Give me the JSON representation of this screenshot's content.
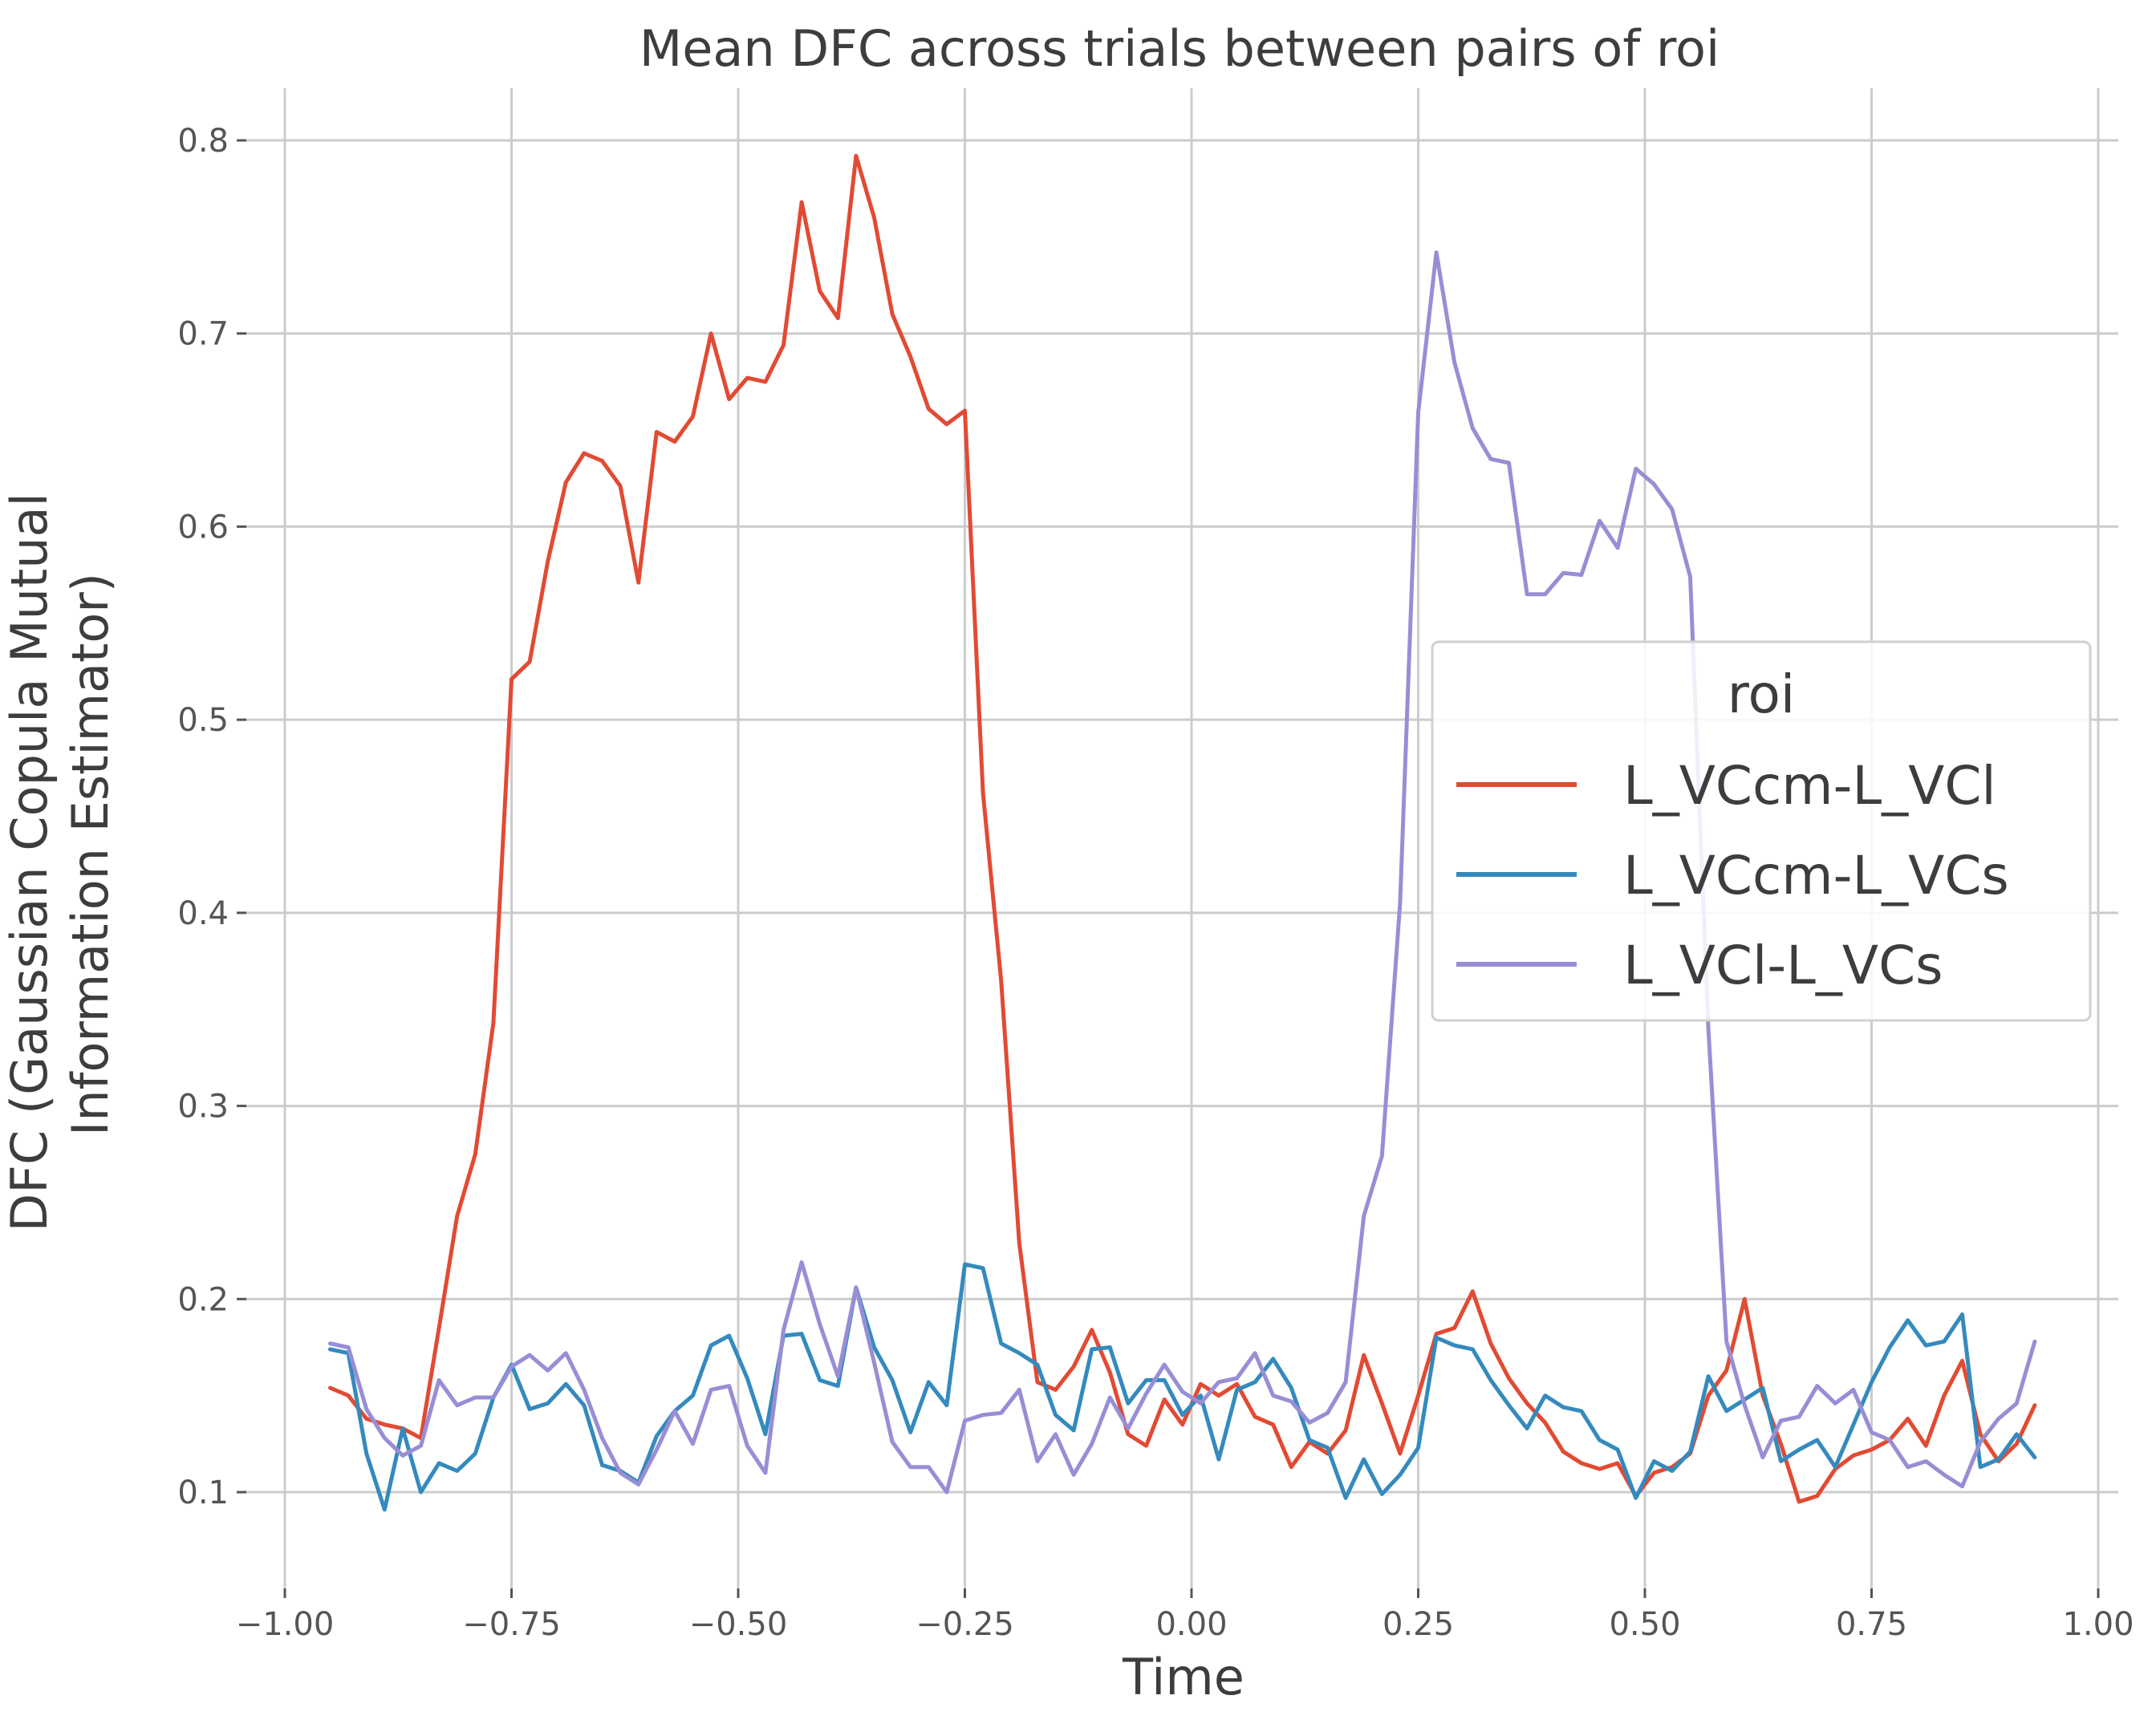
{
  "chart_data": {
    "type": "line",
    "title": "Mean DFC across trials between pairs of roi",
    "xlabel": "Time",
    "ylabel": [
      "DFC (Gaussian Copula Mutual",
      "Information Estimator)"
    ],
    "xlim": [
      -1.0,
      1.0
    ],
    "ylim": [
      0.073,
      0.827
    ],
    "xticks": [
      -1.0,
      -0.75,
      -0.5,
      -0.25,
      0.0,
      0.25,
      0.5,
      0.75,
      1.0
    ],
    "xtick_labels": [
      "−1.00",
      "−0.75",
      "−0.50",
      "−0.25",
      "0.00",
      "0.25",
      "0.50",
      "0.75",
      "1.00"
    ],
    "yticks": [
      0.1,
      0.2,
      0.3,
      0.4,
      0.5,
      0.6,
      0.7,
      0.8
    ],
    "ytick_labels": [
      "0.1",
      "0.2",
      "0.3",
      "0.4",
      "0.5",
      "0.6",
      "0.7",
      "0.8"
    ],
    "grid": true,
    "legend": {
      "title": "roi",
      "placement": "center-right"
    },
    "x": [
      -0.95,
      -0.93,
      -0.91,
      -0.89,
      -0.87,
      -0.85,
      -0.83,
      -0.81,
      -0.79,
      -0.77,
      -0.75,
      -0.73,
      -0.71,
      -0.69,
      -0.67,
      -0.65,
      -0.63,
      -0.61,
      -0.59,
      -0.57,
      -0.55,
      -0.53,
      -0.51,
      -0.49,
      -0.47,
      -0.45,
      -0.43,
      -0.41,
      -0.39,
      -0.37,
      -0.35,
      -0.33,
      -0.31,
      -0.29,
      -0.27,
      -0.25,
      -0.23,
      -0.21,
      -0.19,
      -0.17,
      -0.15,
      -0.13,
      -0.11,
      -0.09,
      -0.07,
      -0.05,
      -0.03,
      -0.01,
      0.01,
      0.03,
      0.05,
      0.07,
      0.09,
      0.11,
      0.13,
      0.15,
      0.17,
      0.19,
      0.21,
      0.23,
      0.25,
      0.27,
      0.29,
      0.31,
      0.33,
      0.35,
      0.37,
      0.39,
      0.41,
      0.43,
      0.45,
      0.47,
      0.49,
      0.51,
      0.53,
      0.55,
      0.57,
      0.59,
      0.61,
      0.63,
      0.65,
      0.67,
      0.69,
      0.71,
      0.73,
      0.75,
      0.77,
      0.79,
      0.81,
      0.83,
      0.85,
      0.87,
      0.89,
      0.91,
      0.93
    ],
    "series": [
      {
        "name": "L_VCcm-L_VCl",
        "color": "#E24A33",
        "values": [
          0.154,
          0.15,
          0.138,
          0.135,
          0.133,
          0.128,
          0.185,
          0.243,
          0.275,
          0.343,
          0.521,
          0.53,
          0.582,
          0.623,
          0.638,
          0.634,
          0.621,
          0.571,
          0.649,
          0.644,
          0.657,
          0.7,
          0.666,
          0.677,
          0.675,
          0.694,
          0.768,
          0.722,
          0.708,
          0.792,
          0.76,
          0.71,
          0.688,
          0.661,
          0.653,
          0.66,
          0.462,
          0.365,
          0.229,
          0.157,
          0.153,
          0.165,
          0.184,
          0.162,
          0.13,
          0.124,
          0.148,
          0.135,
          0.156,
          0.15,
          0.156,
          0.139,
          0.135,
          0.113,
          0.126,
          0.12,
          0.132,
          0.171,
          0.146,
          0.12,
          0.15,
          0.182,
          0.185,
          0.204,
          0.177,
          0.159,
          0.146,
          0.136,
          0.121,
          0.115,
          0.112,
          0.115,
          0.098,
          0.11,
          0.113,
          0.12,
          0.15,
          0.163,
          0.2,
          0.15,
          0.125,
          0.095,
          0.098,
          0.112,
          0.119,
          0.122,
          0.127,
          0.138,
          0.124,
          0.15,
          0.168,
          0.13,
          0.116,
          0.125,
          0.145
        ]
      },
      {
        "name": "L_VCcm-L_VCs",
        "color": "#348ABD",
        "values": [
          0.174,
          0.172,
          0.12,
          0.091,
          0.133,
          0.1,
          0.115,
          0.111,
          0.12,
          0.149,
          0.166,
          0.143,
          0.146,
          0.156,
          0.145,
          0.114,
          0.111,
          0.105,
          0.129,
          0.142,
          0.15,
          0.176,
          0.181,
          0.159,
          0.13,
          0.181,
          0.182,
          0.158,
          0.155,
          0.206,
          0.175,
          0.158,
          0.131,
          0.157,
          0.145,
          0.218,
          0.216,
          0.177,
          0.172,
          0.166,
          0.14,
          0.132,
          0.174,
          0.175,
          0.146,
          0.158,
          0.158,
          0.14,
          0.15,
          0.117,
          0.153,
          0.157,
          0.169,
          0.154,
          0.127,
          0.123,
          0.097,
          0.117,
          0.099,
          0.109,
          0.123,
          0.18,
          0.176,
          0.174,
          0.158,
          0.145,
          0.133,
          0.15,
          0.144,
          0.142,
          0.127,
          0.122,
          0.097,
          0.116,
          0.111,
          0.121,
          0.16,
          0.142,
          0.148,
          0.154,
          0.116,
          0.122,
          0.127,
          0.113,
          0.135,
          0.157,
          0.175,
          0.189,
          0.176,
          0.178,
          0.192,
          0.113,
          0.117,
          0.13,
          0.118
        ]
      },
      {
        "name": "L_VCl-L_VCs",
        "color": "#988ED5",
        "values": [
          0.177,
          0.175,
          0.143,
          0.128,
          0.119,
          0.124,
          0.158,
          0.145,
          0.149,
          0.149,
          0.165,
          0.171,
          0.163,
          0.172,
          0.153,
          0.128,
          0.11,
          0.104,
          0.122,
          0.142,
          0.125,
          0.153,
          0.155,
          0.124,
          0.11,
          0.184,
          0.219,
          0.187,
          0.16,
          0.206,
          0.167,
          0.126,
          0.113,
          0.113,
          0.1,
          0.137,
          0.14,
          0.141,
          0.153,
          0.116,
          0.13,
          0.109,
          0.125,
          0.149,
          0.133,
          0.151,
          0.166,
          0.152,
          0.146,
          0.157,
          0.159,
          0.172,
          0.15,
          0.147,
          0.136,
          0.141,
          0.157,
          0.243,
          0.274,
          0.405,
          0.659,
          0.742,
          0.685,
          0.651,
          0.635,
          0.633,
          0.565,
          0.565,
          0.576,
          0.575,
          0.603,
          0.589,
          0.63,
          0.622,
          0.609,
          0.574,
          0.34,
          0.178,
          0.145,
          0.118,
          0.137,
          0.139,
          0.155,
          0.146,
          0.153,
          0.131,
          0.127,
          0.113,
          0.116,
          0.109,
          0.103,
          0.126,
          0.138,
          0.146,
          0.178
        ]
      }
    ]
  }
}
